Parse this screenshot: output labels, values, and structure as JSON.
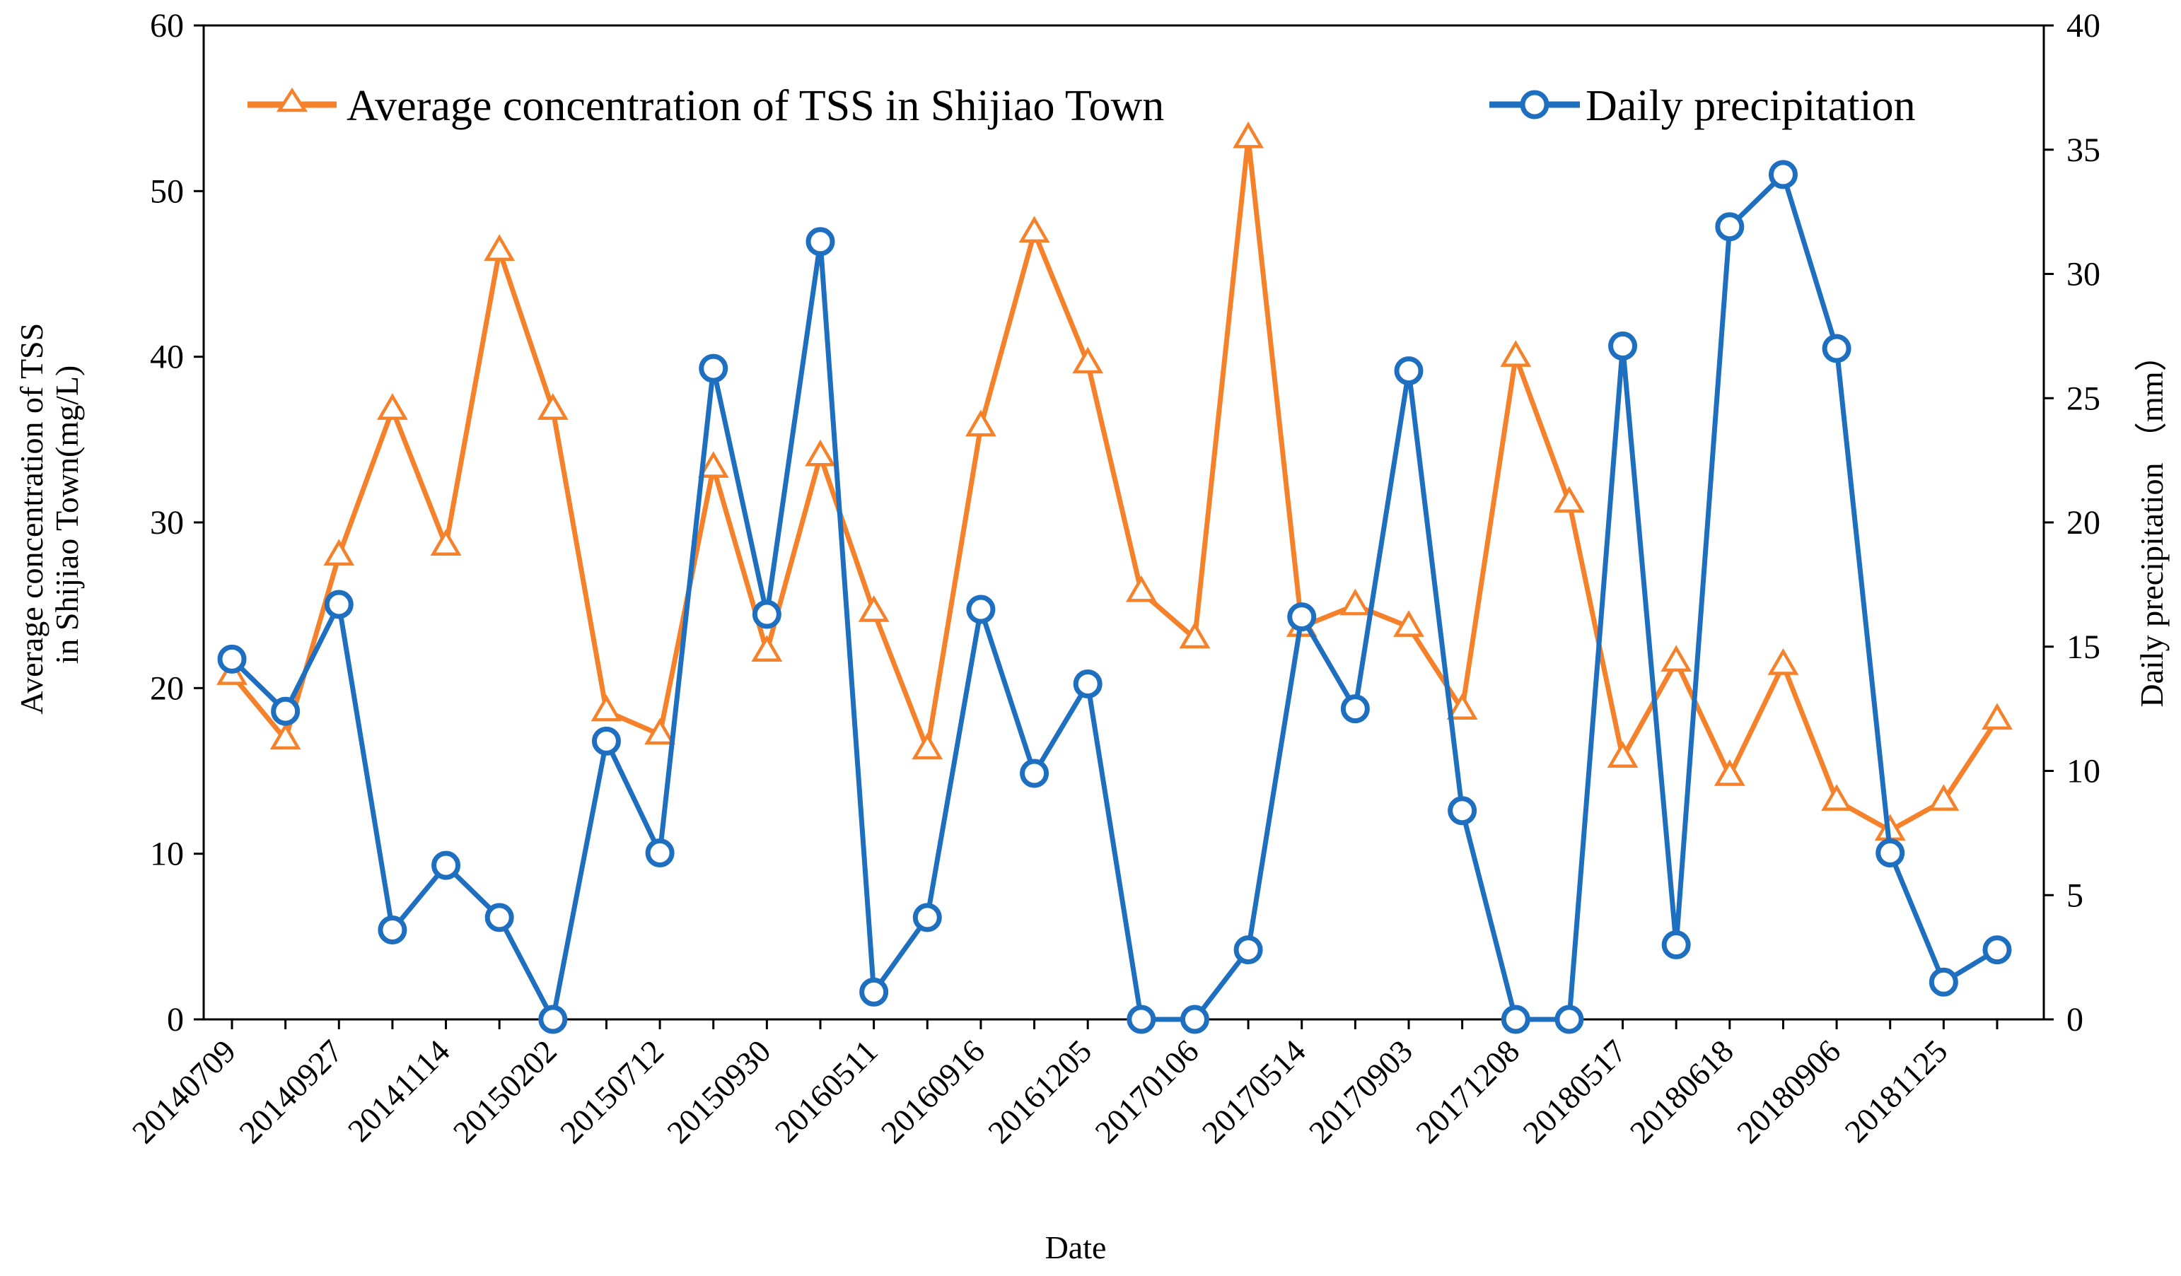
{
  "chart_data": {
    "type": "line",
    "xlabel": "Date",
    "ylabel_left": [
      "Average concentration of TSS",
      "in Shijiao Town(mg/L)"
    ],
    "ylabel_right": "Daily precipitation （mm）",
    "ylim_left": [
      0,
      60
    ],
    "ylim_right": [
      0,
      40
    ],
    "yticks_left": [
      0,
      10,
      20,
      30,
      40,
      50,
      60
    ],
    "yticks_right": [
      0,
      5,
      10,
      15,
      20,
      25,
      30,
      35,
      40
    ],
    "x_tick_labels": [
      "20140709",
      "20140927",
      "20141114",
      "20150202",
      "20150712",
      "20150930",
      "20160511",
      "20160916",
      "20161205",
      "20170106",
      "20170514",
      "20170903",
      "20171208",
      "20180517",
      "20180618",
      "20180906",
      "20181125"
    ],
    "grid": false,
    "legend_position": "top",
    "series": [
      {
        "name": "Average concentration of TSS in Shijiao Town",
        "axis": "left",
        "color": "#F5822A",
        "marker": "triangle",
        "values": [
          20.8,
          16.9,
          28.0,
          36.8,
          28.6,
          46.4,
          36.8,
          18.6,
          17.2,
          33.3,
          22.2,
          34.0,
          24.6,
          16.3,
          35.8,
          47.5,
          39.6,
          25.8,
          23.0,
          53.2,
          23.7,
          25.0,
          23.7,
          18.7,
          40.0,
          31.2,
          15.8,
          21.6,
          14.7,
          21.4,
          13.2,
          11.4,
          13.2,
          18.1
        ]
      },
      {
        "name": "Daily precipitation",
        "axis": "right",
        "color": "#1F6FC0",
        "marker": "circle",
        "values": [
          14.5,
          12.4,
          16.7,
          3.6,
          6.2,
          4.1,
          0.0,
          11.2,
          6.7,
          26.2,
          16.3,
          31.3,
          1.1,
          4.1,
          16.5,
          9.9,
          13.5,
          0.0,
          0.0,
          2.8,
          16.2,
          12.5,
          26.1,
          8.4,
          0.0,
          0.0,
          27.1,
          3.0,
          31.9,
          34.0,
          27.0,
          6.7,
          1.5,
          2.8
        ]
      }
    ]
  }
}
